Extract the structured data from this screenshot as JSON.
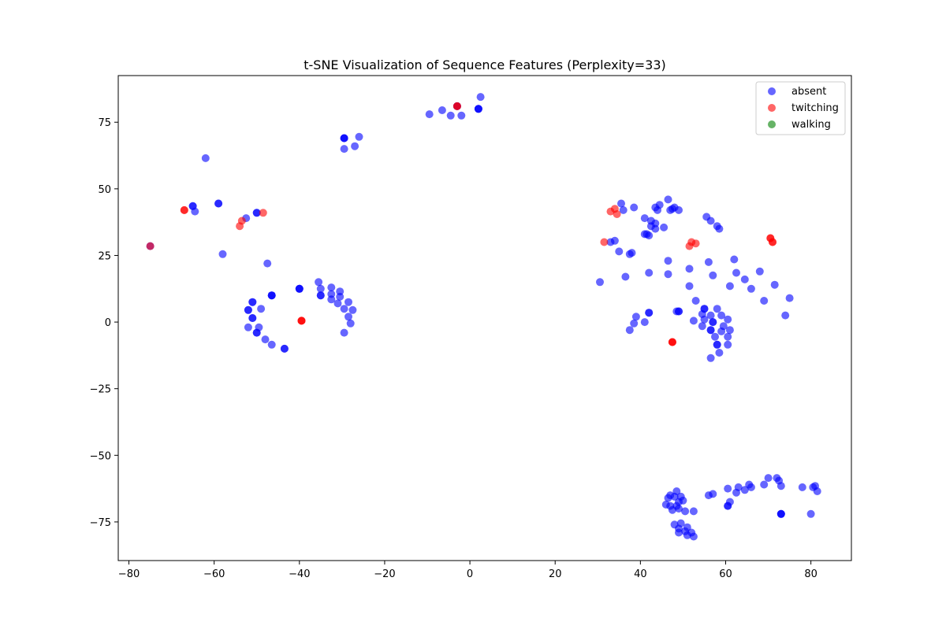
{
  "chart_data": {
    "type": "scatter",
    "title": "t-SNE Visualization of Sequence Features (Perplexity=33)",
    "xlabel": "",
    "ylabel": "",
    "xlim": [
      -82.5,
      89.5
    ],
    "ylim": [
      -89.5,
      92.5
    ],
    "xticks": [
      -80,
      -60,
      -40,
      -20,
      0,
      20,
      40,
      60,
      80
    ],
    "yticks": [
      -75,
      -50,
      -25,
      0,
      25,
      50,
      75
    ],
    "xtick_labels": [
      "−80",
      "−60",
      "−40",
      "−20",
      "0",
      "20",
      "40",
      "60",
      "80"
    ],
    "ytick_labels": [
      "−75",
      "−50",
      "−25",
      "0",
      "25",
      "50",
      "75"
    ],
    "grid": false,
    "legend_position": "top-right",
    "series": [
      {
        "name": "absent",
        "color": "#0000ff",
        "alpha": 0.6,
        "points": [
          [
            -9.5,
            78
          ],
          [
            -6.5,
            79.5
          ],
          [
            -4.5,
            77.5
          ],
          [
            -2,
            77.5
          ],
          [
            2,
            80
          ],
          [
            2,
            80
          ],
          [
            2,
            80
          ],
          [
            2.5,
            84.5
          ],
          [
            -3,
            81
          ],
          [
            -3,
            81
          ],
          [
            -29.5,
            69
          ],
          [
            -29.5,
            69
          ],
          [
            -29.5,
            69
          ],
          [
            -29.5,
            65
          ],
          [
            -27,
            66
          ],
          [
            -26,
            69.5
          ],
          [
            -62,
            61.5
          ],
          [
            -65,
            43.5
          ],
          [
            -65,
            43.5
          ],
          [
            -64.5,
            41.5
          ],
          [
            -59,
            44.5
          ],
          [
            -59,
            44.5
          ],
          [
            -52.5,
            39
          ],
          [
            -50,
            41
          ],
          [
            -50,
            41
          ],
          [
            -58,
            25.5
          ],
          [
            -47.5,
            22
          ],
          [
            -75,
            28.5
          ],
          [
            -51,
            7.5
          ],
          [
            -51,
            7.5
          ],
          [
            -52,
            4.5
          ],
          [
            -52,
            4.5
          ],
          [
            -49,
            5
          ],
          [
            -46.5,
            10
          ],
          [
            -46.5,
            10
          ],
          [
            -46.5,
            10
          ],
          [
            -51,
            1.5
          ],
          [
            -51,
            1.5
          ],
          [
            -52,
            -2
          ],
          [
            -49.5,
            -2
          ],
          [
            -50,
            -4
          ],
          [
            -50,
            -4
          ],
          [
            -48,
            -6.5
          ],
          [
            -46.5,
            -8.5
          ],
          [
            -43.5,
            -10
          ],
          [
            -43.5,
            -10
          ],
          [
            -40,
            12.5
          ],
          [
            -40,
            12.5
          ],
          [
            -40,
            12.5
          ],
          [
            -35.5,
            15
          ],
          [
            -35,
            12.5
          ],
          [
            -35,
            10
          ],
          [
            -35,
            10
          ],
          [
            -32.5,
            13
          ],
          [
            -32.5,
            10.5
          ],
          [
            -32.5,
            8.5
          ],
          [
            -31,
            7
          ],
          [
            -30.5,
            11.5
          ],
          [
            -30.5,
            9.5
          ],
          [
            -29.5,
            5
          ],
          [
            -28.5,
            7.5
          ],
          [
            -27.5,
            4.5
          ],
          [
            -28.5,
            2
          ],
          [
            -28,
            -0.5
          ],
          [
            -29.5,
            -4
          ],
          [
            30.5,
            15
          ],
          [
            33,
            30
          ],
          [
            34,
            30.5
          ],
          [
            35,
            26.5
          ],
          [
            35.5,
            44.5
          ],
          [
            36,
            42
          ],
          [
            37.5,
            25.5
          ],
          [
            36.5,
            17
          ],
          [
            38,
            26
          ],
          [
            38.5,
            43
          ],
          [
            37.5,
            -3
          ],
          [
            38.5,
            -0.5
          ],
          [
            39,
            2
          ],
          [
            41,
            39
          ],
          [
            41,
            33
          ],
          [
            41.5,
            33
          ],
          [
            42,
            32.5
          ],
          [
            42.5,
            36
          ],
          [
            42.5,
            38
          ],
          [
            42,
            18.5
          ],
          [
            43.5,
            43
          ],
          [
            44,
            42
          ],
          [
            43.5,
            35
          ],
          [
            43.5,
            37
          ],
          [
            44.5,
            44
          ],
          [
            45.5,
            35.5
          ],
          [
            46.5,
            46
          ],
          [
            47,
            42
          ],
          [
            47.5,
            42.5
          ],
          [
            48,
            43
          ],
          [
            49,
            42
          ],
          [
            46.5,
            23
          ],
          [
            46.5,
            18
          ],
          [
            41,
            0
          ],
          [
            42,
            3.5
          ],
          [
            42,
            3.5
          ],
          [
            48.5,
            4
          ],
          [
            49,
            4
          ],
          [
            49,
            4
          ],
          [
            51.5,
            20
          ],
          [
            51.5,
            13.5
          ],
          [
            52.5,
            0.5
          ],
          [
            53,
            8
          ],
          [
            54.5,
            3
          ],
          [
            55,
            5
          ],
          [
            55,
            5
          ],
          [
            55,
            1
          ],
          [
            54.5,
            -1.5
          ],
          [
            55.5,
            39.5
          ],
          [
            56.5,
            38
          ],
          [
            56,
            22.5
          ],
          [
            57,
            17.5
          ],
          [
            56.5,
            2.5
          ],
          [
            57,
            0
          ],
          [
            57,
            0
          ],
          [
            56.5,
            -3
          ],
          [
            56.5,
            -3
          ],
          [
            56.5,
            -13.5
          ],
          [
            57.5,
            -5.5
          ],
          [
            58,
            -8.5
          ],
          [
            58,
            -8.5
          ],
          [
            58.5,
            -11.5
          ],
          [
            58,
            36
          ],
          [
            58.5,
            35
          ],
          [
            58,
            5
          ],
          [
            59,
            2.5
          ],
          [
            59.5,
            -1.5
          ],
          [
            59,
            -3.5
          ],
          [
            60.5,
            1
          ],
          [
            60.5,
            -5.5
          ],
          [
            60.5,
            -8.5
          ],
          [
            61,
            -3
          ],
          [
            61,
            13.5
          ],
          [
            62,
            23.5
          ],
          [
            62.5,
            18.5
          ],
          [
            64.5,
            16
          ],
          [
            66,
            12.5
          ],
          [
            68,
            19
          ],
          [
            69,
            8
          ],
          [
            71.5,
            14
          ],
          [
            74,
            2.5
          ],
          [
            75,
            9
          ],
          [
            46,
            -68.5
          ],
          [
            46.5,
            -66
          ],
          [
            47,
            -65
          ],
          [
            47,
            -69
          ],
          [
            47.5,
            -70.5
          ],
          [
            48,
            -76
          ],
          [
            48,
            -65.5
          ],
          [
            48.5,
            -69
          ],
          [
            48.5,
            -63.5
          ],
          [
            49,
            -67.5
          ],
          [
            49,
            -70
          ],
          [
            49,
            -77.5
          ],
          [
            49,
            -79
          ],
          [
            49.5,
            -65.5
          ],
          [
            49.5,
            -75.5
          ],
          [
            50,
            -67
          ],
          [
            50.5,
            -71
          ],
          [
            50.5,
            -78.5
          ],
          [
            51,
            -80
          ],
          [
            51,
            -77
          ],
          [
            52,
            -79
          ],
          [
            52.5,
            -71
          ],
          [
            52.5,
            -80.5
          ],
          [
            56,
            -65
          ],
          [
            57,
            -64.5
          ],
          [
            60.5,
            -62.5
          ],
          [
            60.5,
            -69
          ],
          [
            60.5,
            -69
          ],
          [
            61,
            -67.5
          ],
          [
            62.5,
            -64
          ],
          [
            63,
            -62
          ],
          [
            64.5,
            -63
          ],
          [
            65.5,
            -61
          ],
          [
            66,
            -62
          ],
          [
            69,
            -61
          ],
          [
            70,
            -58.5
          ],
          [
            72,
            -58.5
          ],
          [
            72.5,
            -59.5
          ],
          [
            73,
            -61.5
          ],
          [
            73,
            -72
          ],
          [
            73,
            -72
          ],
          [
            73,
            -72
          ],
          [
            78,
            -62
          ],
          [
            80,
            -72
          ],
          [
            81,
            -61.5
          ],
          [
            81.5,
            -63.5
          ],
          [
            80.5,
            -62
          ]
        ]
      },
      {
        "name": "twitching",
        "color": "#ff0000",
        "alpha": 0.6,
        "points": [
          [
            -67,
            42
          ],
          [
            -67,
            42
          ],
          [
            -54,
            36
          ],
          [
            -53.5,
            38
          ],
          [
            -48.5,
            41
          ],
          [
            -75,
            28.5
          ],
          [
            -39.5,
            0.5
          ],
          [
            -39.5,
            0.5
          ],
          [
            -39.5,
            0.5
          ],
          [
            -3,
            81
          ],
          [
            -3,
            81
          ],
          [
            31.5,
            30
          ],
          [
            33,
            41.5
          ],
          [
            34,
            42.5
          ],
          [
            34.5,
            40.5
          ],
          [
            51.5,
            28.5
          ],
          [
            52,
            30
          ],
          [
            53,
            29.5
          ],
          [
            70.5,
            31.5
          ],
          [
            70.5,
            31.5
          ],
          [
            71,
            30
          ],
          [
            71,
            30
          ],
          [
            47.5,
            -7.5
          ],
          [
            47.5,
            -7.5
          ],
          [
            47.5,
            -7.5
          ]
        ]
      },
      {
        "name": "walking",
        "color": "#008000",
        "alpha": 0.6,
        "points": []
      }
    ]
  }
}
